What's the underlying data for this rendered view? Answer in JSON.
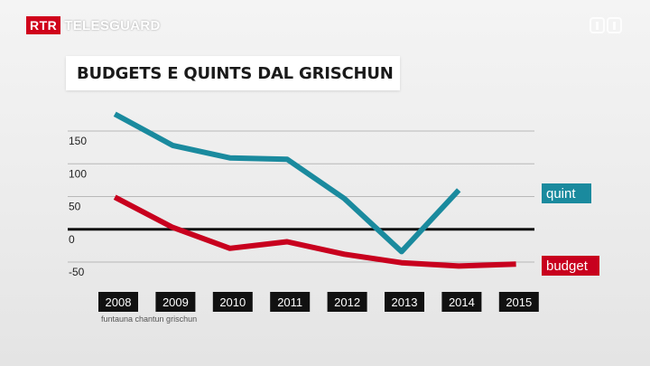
{
  "broadcaster": {
    "badge": "RTR",
    "program": "TELESGUARD",
    "badge_color": "#d0021b",
    "channel_logo_icon": "srf1-channel-logo-icon"
  },
  "chart_data": {
    "type": "line",
    "title": "BUDGETS E QUINTS DAL GRISCHUN",
    "categories": [
      "2008",
      "2009",
      "2010",
      "2011",
      "2012",
      "2013",
      "2014",
      "2015"
    ],
    "y_ticks": [
      "150",
      "100",
      "50",
      "0",
      "-50"
    ],
    "ylim": [
      -50,
      150
    ],
    "zero_line": true,
    "grid": true,
    "series": [
      {
        "name": "quint",
        "color": "#1a8a9e",
        "x": [
          2007.94,
          2008.95,
          2009.95,
          2010.95,
          2011.95,
          2012.95,
          2013.95
        ],
        "values": [
          176,
          128,
          109,
          107,
          47,
          -34,
          60
        ]
      },
      {
        "name": "budget",
        "color": "#c8001e",
        "x": [
          2007.94,
          2008.95,
          2009.95,
          2010.95,
          2011.95,
          2012.95,
          2013.95,
          2014.95
        ],
        "values": [
          49,
          3,
          -29,
          -19,
          -38,
          -51,
          -56,
          -53
        ]
      }
    ],
    "source": "funtauna chantun grischun"
  }
}
